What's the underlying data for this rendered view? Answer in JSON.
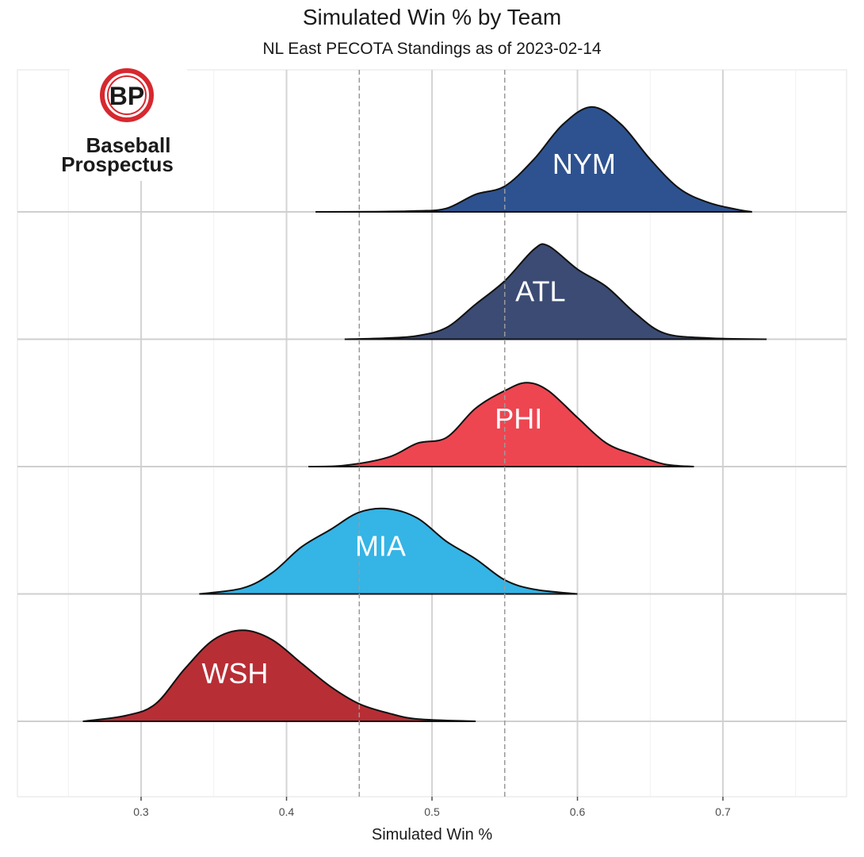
{
  "chart_data": {
    "type": "ridgeline",
    "title": "Simulated Win % by Team",
    "subtitle": "NL East PECOTA Standings as of 2023-02-14",
    "xlabel": "Simulated Win %",
    "xlim": [
      0.215,
      0.785
    ],
    "x_ticks": [
      0.3,
      0.4,
      0.5,
      0.6,
      0.7
    ],
    "x_tick_labels": [
      "0.3",
      "0.4",
      "0.5",
      "0.6",
      "0.7"
    ],
    "reference_lines": [
      0.45,
      0.55
    ],
    "grid": true,
    "logo": {
      "monogram": "BP",
      "line1": "Baseball",
      "line2": "Prospectus"
    },
    "series": [
      {
        "name": "NYM",
        "color": "#2d528f",
        "points": [
          [
            0.42,
            0.0
          ],
          [
            0.46,
            0.002
          ],
          [
            0.49,
            0.008
          ],
          [
            0.51,
            0.03
          ],
          [
            0.53,
            0.15
          ],
          [
            0.55,
            0.22
          ],
          [
            0.57,
            0.45
          ],
          [
            0.59,
            0.75
          ],
          [
            0.61,
            0.9
          ],
          [
            0.63,
            0.75
          ],
          [
            0.65,
            0.45
          ],
          [
            0.67,
            0.2
          ],
          [
            0.69,
            0.08
          ],
          [
            0.71,
            0.02
          ],
          [
            0.72,
            0.0
          ]
        ]
      },
      {
        "name": "ATL",
        "color": "#3b4b73",
        "points": [
          [
            0.44,
            0.0
          ],
          [
            0.47,
            0.01
          ],
          [
            0.49,
            0.03
          ],
          [
            0.51,
            0.1
          ],
          [
            0.53,
            0.3
          ],
          [
            0.55,
            0.5
          ],
          [
            0.57,
            0.77
          ],
          [
            0.58,
            0.8
          ],
          [
            0.6,
            0.6
          ],
          [
            0.62,
            0.45
          ],
          [
            0.64,
            0.22
          ],
          [
            0.66,
            0.05
          ],
          [
            0.69,
            0.01
          ],
          [
            0.73,
            0.0
          ]
        ]
      },
      {
        "name": "PHI",
        "color": "#ed4651",
        "points": [
          [
            0.415,
            0.0
          ],
          [
            0.44,
            0.01
          ],
          [
            0.47,
            0.08
          ],
          [
            0.49,
            0.2
          ],
          [
            0.51,
            0.25
          ],
          [
            0.53,
            0.5
          ],
          [
            0.55,
            0.65
          ],
          [
            0.565,
            0.72
          ],
          [
            0.58,
            0.65
          ],
          [
            0.6,
            0.42
          ],
          [
            0.62,
            0.2
          ],
          [
            0.64,
            0.1
          ],
          [
            0.66,
            0.02
          ],
          [
            0.68,
            0.0
          ]
        ]
      },
      {
        "name": "MIA",
        "color": "#35b4e6",
        "points": [
          [
            0.34,
            0.0
          ],
          [
            0.37,
            0.05
          ],
          [
            0.39,
            0.18
          ],
          [
            0.41,
            0.4
          ],
          [
            0.43,
            0.55
          ],
          [
            0.45,
            0.7
          ],
          [
            0.47,
            0.73
          ],
          [
            0.49,
            0.65
          ],
          [
            0.51,
            0.45
          ],
          [
            0.53,
            0.3
          ],
          [
            0.55,
            0.12
          ],
          [
            0.57,
            0.04
          ],
          [
            0.6,
            0.0
          ]
        ]
      },
      {
        "name": "WSH",
        "color": "#b82e35",
        "points": [
          [
            0.26,
            0.0
          ],
          [
            0.29,
            0.05
          ],
          [
            0.31,
            0.15
          ],
          [
            0.33,
            0.45
          ],
          [
            0.35,
            0.7
          ],
          [
            0.37,
            0.78
          ],
          [
            0.39,
            0.7
          ],
          [
            0.41,
            0.5
          ],
          [
            0.43,
            0.3
          ],
          [
            0.45,
            0.15
          ],
          [
            0.47,
            0.07
          ],
          [
            0.49,
            0.02
          ],
          [
            0.53,
            0.0
          ]
        ]
      }
    ]
  }
}
